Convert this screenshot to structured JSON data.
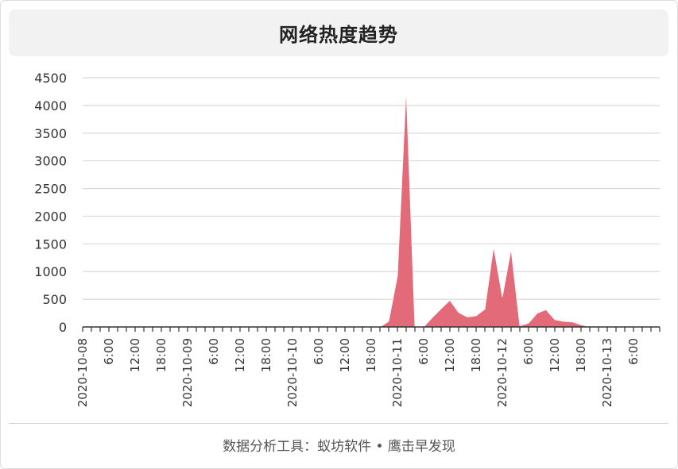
{
  "header": {
    "title": "网络热度趋势"
  },
  "footer": {
    "text": "数据分析工具：蚁坊软件 • 鹰击早发现"
  },
  "colors": {
    "area": "#e36a78",
    "grid": "#d9d9d9",
    "axis": "#333333",
    "text": "#333333"
  },
  "chart_data": {
    "type": "area",
    "title": "网络热度趋势",
    "xlabel": "",
    "ylabel": "",
    "ylim": [
      0,
      4500
    ],
    "yticks": [
      "0",
      "500",
      "1000",
      "1500",
      "2000",
      "2500",
      "3000",
      "3500",
      "4000",
      "4500"
    ],
    "grid": true,
    "interval_hours": 2,
    "x_tick_labels": [
      "2020-10-08",
      "6:00",
      "12:00",
      "18:00",
      "2020-10-09",
      "6:00",
      "12:00",
      "18:00",
      "2020-10-10",
      "6:00",
      "12:00",
      "18:00",
      "2020-10-11",
      "6:00",
      "12:00",
      "18:00",
      "2020-10-12",
      "6:00",
      "12:00",
      "18:00",
      "2020-10-13",
      "6:00"
    ],
    "series": [
      {
        "values": [
          0,
          0,
          0,
          0,
          0,
          0,
          0,
          0,
          0,
          0,
          0,
          0,
          0,
          0,
          0,
          0,
          0,
          0,
          0,
          0,
          0,
          0,
          0,
          0,
          0,
          0,
          0,
          0,
          0,
          0,
          0,
          0,
          0,
          0,
          0,
          100,
          920,
          4300,
          0,
          0,
          170,
          330,
          480,
          260,
          180,
          200,
          320,
          1450,
          540,
          1400,
          20,
          70,
          250,
          310,
          130,
          100,
          90,
          40,
          0,
          0,
          0,
          0,
          0,
          0,
          0,
          0,
          0
        ]
      }
    ]
  }
}
